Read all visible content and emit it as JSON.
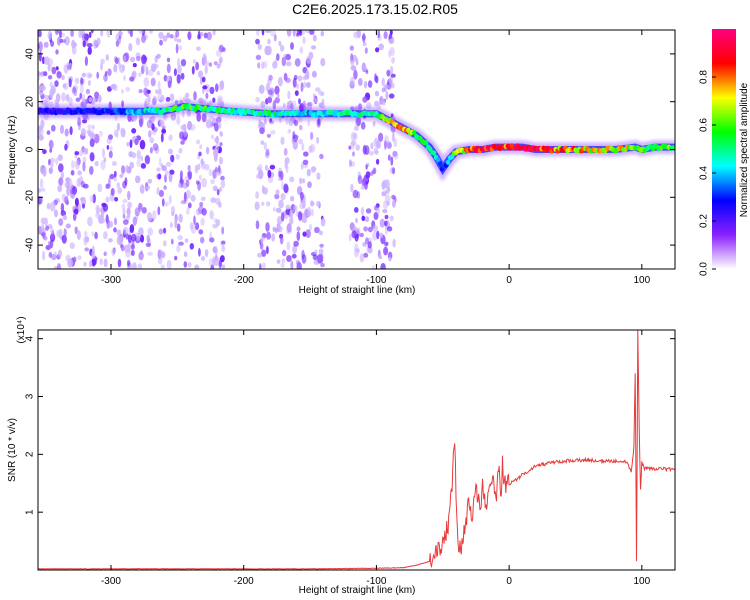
{
  "title": "C2E6.2025.173.15.02.R05",
  "colors": {
    "signal_line": "#e83a3a",
    "colormap_stops": [
      "#ffffff",
      "#8a20ff",
      "#0000ff",
      "#00ffff",
      "#00ff00",
      "#ffff00",
      "#ff0000",
      "#ff0080"
    ]
  },
  "chart_data": [
    {
      "type": "heatmap",
      "xlabel": "Height of straight line (km)",
      "ylabel": "Frequency (Hz)",
      "xlim": [
        -355,
        125
      ],
      "ylim": [
        -50,
        50
      ],
      "xticks": [
        -300,
        -200,
        -100,
        0,
        100
      ],
      "yticks": [
        -40,
        -20,
        0,
        20,
        40
      ],
      "grid": false,
      "colorbar": {
        "label": "Normalized spectral amplitude",
        "range": [
          0.0,
          1.0
        ],
        "ticks": [
          "0.0",
          "0.2",
          "0.4",
          "0.6",
          "0.8"
        ],
        "tick_values": [
          0.0,
          0.2,
          0.4,
          0.6,
          0.8
        ]
      },
      "ridge": {
        "x": [
          -355,
          -300,
          -260,
          -245,
          -210,
          -180,
          -150,
          -120,
          -100,
          -90,
          -80,
          -70,
          -60,
          -55,
          -50,
          -45,
          -40,
          -30,
          -20,
          -10,
          0,
          10,
          20,
          40,
          60,
          80,
          95,
          100,
          110,
          125
        ],
        "y": [
          16,
          16,
          16,
          18,
          16,
          15,
          15,
          15,
          15,
          12,
          9,
          6,
          1,
          -3,
          -8,
          -4,
          -1,
          0,
          0,
          1,
          1,
          1,
          0,
          0,
          0,
          0,
          1,
          0,
          1,
          1
        ],
        "amplitude": [
          0.25,
          0.3,
          0.5,
          0.6,
          0.5,
          0.5,
          0.4,
          0.5,
          0.5,
          0.7,
          0.8,
          0.6,
          0.5,
          0.4,
          0.3,
          0.4,
          0.6,
          0.8,
          0.85,
          0.9,
          0.9,
          0.9,
          0.9,
          0.8,
          0.7,
          0.7,
          0.7,
          0.6,
          0.6,
          0.6
        ]
      },
      "noise_regions": [
        {
          "x": [
            -355,
            -215
          ],
          "level": 0.25
        },
        {
          "x": [
            -190,
            -140
          ],
          "level": 0.25
        },
        {
          "x": [
            -120,
            -85
          ],
          "level": 0.2
        }
      ]
    },
    {
      "type": "line",
      "xlabel": "Height of straight line (km)",
      "ylabel": "SNR (10 * v/v)",
      "scale_label": "(x10⁴)",
      "xlim": [
        -355,
        125
      ],
      "ylim": [
        0,
        4.15
      ],
      "xticks": [
        -300,
        -200,
        -100,
        0,
        100
      ],
      "yticks": [
        1,
        2,
        3,
        4
      ],
      "grid": false,
      "series": [
        {
          "x": [
            -355,
            -300,
            -200,
            -150,
            -100,
            -80,
            -70,
            -60,
            -55,
            -50,
            -45,
            -43,
            -41,
            -40,
            -39,
            -38,
            -36,
            -34,
            -30,
            -28,
            -25,
            -22,
            -20,
            -18,
            -15,
            -12,
            -10,
            -8,
            -6,
            -5,
            -4,
            -2,
            0,
            5,
            10,
            20,
            30,
            40,
            50,
            60,
            70,
            80,
            88,
            92,
            94,
            95,
            96,
            97,
            98,
            99,
            100,
            102,
            110,
            125
          ],
          "y": [
            0.02,
            0.02,
            0.02,
            0.02,
            0.03,
            0.04,
            0.08,
            0.15,
            0.3,
            0.4,
            0.9,
            1.5,
            2.28,
            1.2,
            0.6,
            0.4,
            0.3,
            0.7,
            1.2,
            0.95,
            1.35,
            1.05,
            1.45,
            1.15,
            1.3,
            1.6,
            1.2,
            1.75,
            1.3,
            1.95,
            1.5,
            1.45,
            1.5,
            1.55,
            1.65,
            1.8,
            1.85,
            1.88,
            1.9,
            1.9,
            1.88,
            1.88,
            1.88,
            1.7,
            2.1,
            3.4,
            0.15,
            4.15,
            2.5,
            1.4,
            1.85,
            1.75,
            1.75,
            1.74
          ]
        }
      ]
    }
  ]
}
